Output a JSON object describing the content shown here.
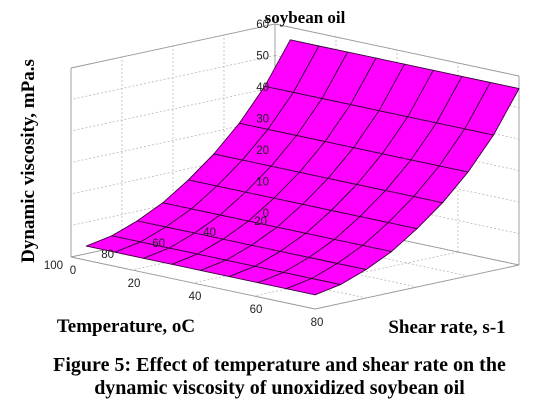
{
  "chart_data": {
    "type": "surface",
    "title": "soybean oil",
    "zlabel": "Dynamic viscosity, mPa.s",
    "xlabel": "Shear rate, s-1",
    "ylabel": "Temperature, oC",
    "shear_rate": [
      5,
      14.4,
      23.8,
      33.1,
      42.5,
      51.9,
      61.3,
      70.6,
      80
    ],
    "temperature": [
      20,
      30,
      40,
      50,
      60,
      70,
      80,
      90,
      100
    ],
    "viscosity_by_temperature": [
      56,
      43,
      33,
      25,
      18.5,
      13,
      9,
      6,
      4.5
    ],
    "x_ticks": [
      "0",
      "20",
      "40",
      "60",
      "80"
    ],
    "y_ticks": [
      "20",
      "40",
      "60",
      "80",
      "100"
    ],
    "z_ticks": [
      "0",
      "10",
      "20",
      "30",
      "40",
      "50",
      "60"
    ],
    "xlim": [
      0,
      80
    ],
    "ylim": [
      20,
      100
    ],
    "zlim": [
      0,
      60
    ],
    "surface_color": "#ff00ff",
    "grid": true
  },
  "caption": {
    "line1": "Figure 5:  Effect of temperature and shear rate on the",
    "line2": "dynamic viscosity of unoxidized soybean oil"
  }
}
